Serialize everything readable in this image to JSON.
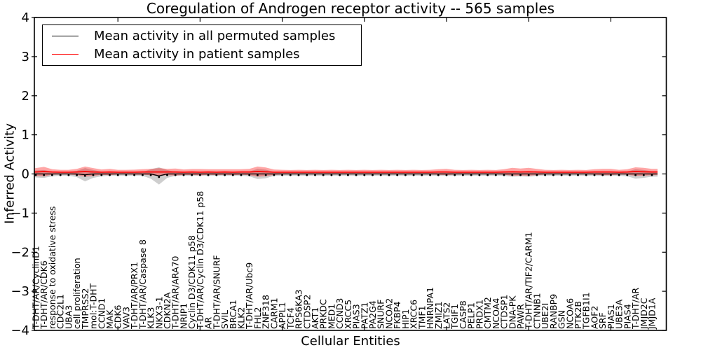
{
  "title": "Coregulation of Androgen receptor activity -- 565 samples",
  "axes": {
    "ylabel": "Inferred Activity",
    "xlabel": "Cellular Entities",
    "y_ticks": [
      "4",
      "3",
      "2",
      "1",
      "0",
      "−1",
      "−2",
      "−3",
      "−4"
    ]
  },
  "legend": {
    "items": [
      {
        "label": "Mean activity in all permuted samples",
        "color": "#000000"
      },
      {
        "label": "Mean activity in patient samples",
        "color": "#ff0000"
      }
    ]
  },
  "chart_data": {
    "type": "line",
    "title": "Coregulation of Androgen receptor activity -- 565 samples",
    "xlabel": "Cellular Entities",
    "ylabel": "Inferred Activity",
    "ylim": [
      -4,
      4
    ],
    "grid": false,
    "legend_position": "upper left",
    "x_major_tick_indices": [
      10,
      20,
      30,
      40,
      50,
      60,
      70
    ],
    "categories": [
      "T-DHT/AR/CyclinD1",
      "T-DHT/AR/CDK6",
      "response to oxidative stress",
      "CDC2L1",
      "UBA3",
      "cell proliferation",
      "TMPRSS2",
      "mol:T-DHT",
      "CCND1",
      "MAK",
      "CDK6",
      "VAV3",
      "T-DHT/AR/PRX1",
      "T-DHT/AR/Caspase 8",
      "KLK3",
      "NKX3-1",
      "CDKN2A",
      "T-DHT/AR/ARA70",
      "NRIP1",
      "Cyclin D3/CDK11 p58",
      "T-DHT/AR/Cyclin D3/CDK11 p58",
      "AR",
      "T-DHT/AR/SNURF",
      "SVIL",
      "BRCA1",
      "KLK2",
      "T-DHT/AR/Ubc9",
      "FHL2",
      "ZNF318",
      "CARM1",
      "APPL1",
      "TCF4",
      "RPS6KA3",
      "CTDSP2",
      "AKT1",
      "PRKDC",
      "MED1",
      "CCND3",
      "XRCC5",
      "PIAS3",
      "PATZ1",
      "PA2G4",
      "SNURF",
      "NCOA2",
      "FKBP4",
      "HIP1",
      "XRCC6",
      "TMF1",
      "HNRNPA1",
      "ZMIZ1",
      "LATS2",
      "TGIF1",
      "CASP8",
      "PELP1",
      "PRDX1",
      "CMTM2",
      "NCOA4",
      "CTDSP1",
      "DNA-PK",
      "PAWR",
      "T-DHT/AR/TIF2/CARM1",
      "CTNNB1",
      "UBE2I",
      "RANBP9",
      "GSN",
      "NCOA6",
      "PTK2B",
      "TGFB1I1",
      "AOF2",
      "SRF",
      "PIAS1",
      "UBE3A",
      "PIAS4",
      "T-DHT/AR",
      "JMJD2C",
      "JMJD1A"
    ],
    "series": [
      {
        "name": "Mean activity in all permuted samples",
        "key": "permuted",
        "color": "#000000",
        "band_color": "rgba(125,125,125,0.38)",
        "markers": true,
        "mean": [
          0,
          0,
          0,
          0,
          0,
          0,
          -0.02,
          0,
          0,
          0,
          0,
          0,
          0,
          0,
          0,
          -0.05,
          0,
          0,
          0,
          0,
          0,
          0,
          0,
          0,
          0,
          0,
          0,
          0,
          0,
          0,
          0,
          0,
          0,
          0,
          0,
          0,
          0,
          0,
          0,
          0,
          0,
          0,
          0,
          0,
          0,
          0,
          0,
          0,
          0,
          0,
          0,
          0,
          0,
          0,
          0,
          0,
          0,
          0,
          0,
          0,
          0,
          0,
          0,
          0,
          0,
          0,
          0,
          0,
          0,
          0,
          0,
          0,
          0,
          0,
          0,
          0
        ],
        "band_halfwidth": [
          0.09,
          0.1,
          0.06,
          0.045,
          0.045,
          0.08,
          0.17,
          0.1,
          0.06,
          0.045,
          0.045,
          0.045,
          0.045,
          0.05,
          0.12,
          0.22,
          0.1,
          0.05,
          0.045,
          0.045,
          0.045,
          0.045,
          0.045,
          0.045,
          0.045,
          0.045,
          0.06,
          0.13,
          0.11,
          0.05,
          0.045,
          0.045,
          0.045,
          0.045,
          0.045,
          0.045,
          0.045,
          0.045,
          0.045,
          0.045,
          0.045,
          0.045,
          0.045,
          0.045,
          0.045,
          0.045,
          0.045,
          0.045,
          0.045,
          0.045,
          0.05,
          0.045,
          0.045,
          0.045,
          0.045,
          0.045,
          0.045,
          0.05,
          0.07,
          0.06,
          0.07,
          0.05,
          0.045,
          0.045,
          0.045,
          0.045,
          0.045,
          0.045,
          0.05,
          0.05,
          0.05,
          0.045,
          0.06,
          0.12,
          0.1,
          0.07
        ]
      },
      {
        "name": "Mean activity in patient samples",
        "key": "patient",
        "color": "#ff0000",
        "band_color": "rgba(255,0,0,0.35)",
        "markers": false,
        "mean": [
          0.05,
          0.06,
          0.05,
          0.045,
          0.045,
          0.05,
          0.06,
          0.05,
          0.045,
          0.05,
          0.045,
          0.045,
          0.045,
          0.05,
          0.05,
          0.05,
          0.05,
          0.05,
          0.045,
          0.05,
          0.045,
          0.05,
          0.045,
          0.05,
          0.045,
          0.05,
          0.05,
          0.06,
          0.055,
          0.045,
          0.045,
          0.045,
          0.045,
          0.045,
          0.045,
          0.045,
          0.045,
          0.045,
          0.045,
          0.045,
          0.045,
          0.045,
          0.045,
          0.045,
          0.045,
          0.045,
          0.045,
          0.045,
          0.045,
          0.05,
          0.05,
          0.045,
          0.045,
          0.045,
          0.045,
          0.045,
          0.045,
          0.05,
          0.055,
          0.05,
          0.055,
          0.05,
          0.045,
          0.045,
          0.045,
          0.045,
          0.045,
          0.045,
          0.05,
          0.05,
          0.05,
          0.045,
          0.05,
          0.06,
          0.055,
          0.05
        ],
        "band_halfwidth": [
          0.1,
          0.12,
          0.07,
          0.06,
          0.06,
          0.08,
          0.13,
          0.1,
          0.07,
          0.08,
          0.06,
          0.06,
          0.065,
          0.07,
          0.08,
          0.1,
          0.08,
          0.09,
          0.07,
          0.075,
          0.08,
          0.07,
          0.075,
          0.07,
          0.075,
          0.07,
          0.08,
          0.13,
          0.11,
          0.07,
          0.06,
          0.055,
          0.06,
          0.055,
          0.06,
          0.055,
          0.06,
          0.055,
          0.06,
          0.055,
          0.06,
          0.055,
          0.06,
          0.055,
          0.06,
          0.055,
          0.06,
          0.055,
          0.06,
          0.07,
          0.08,
          0.06,
          0.055,
          0.06,
          0.055,
          0.06,
          0.055,
          0.07,
          0.1,
          0.09,
          0.1,
          0.08,
          0.06,
          0.055,
          0.06,
          0.055,
          0.06,
          0.055,
          0.07,
          0.08,
          0.08,
          0.06,
          0.07,
          0.11,
          0.1,
          0.08
        ]
      }
    ]
  }
}
